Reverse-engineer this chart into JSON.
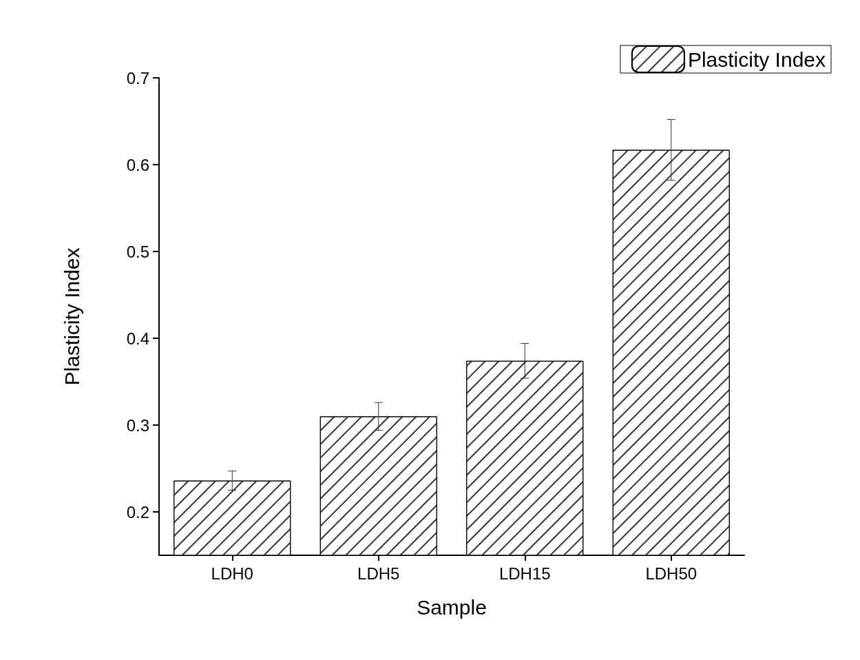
{
  "chart_data": {
    "type": "bar",
    "xlabel": "Sample",
    "ylabel": "Plasticity Index",
    "categories": [
      "LDH0",
      "LDH5",
      "LDH15",
      "LDH50"
    ],
    "series": [
      {
        "name": "Plasticity Index",
        "color": "#ffffff",
        "values": [
          0.236,
          0.31,
          0.374,
          0.617
        ],
        "errors": [
          0.011,
          0.016,
          0.02,
          0.035
        ]
      }
    ],
    "ylim": [
      0.15,
      0.7
    ],
    "yticks": [
      0.2,
      0.3,
      0.4,
      0.5,
      0.6,
      0.7
    ],
    "grid": false,
    "legend": "top right"
  }
}
